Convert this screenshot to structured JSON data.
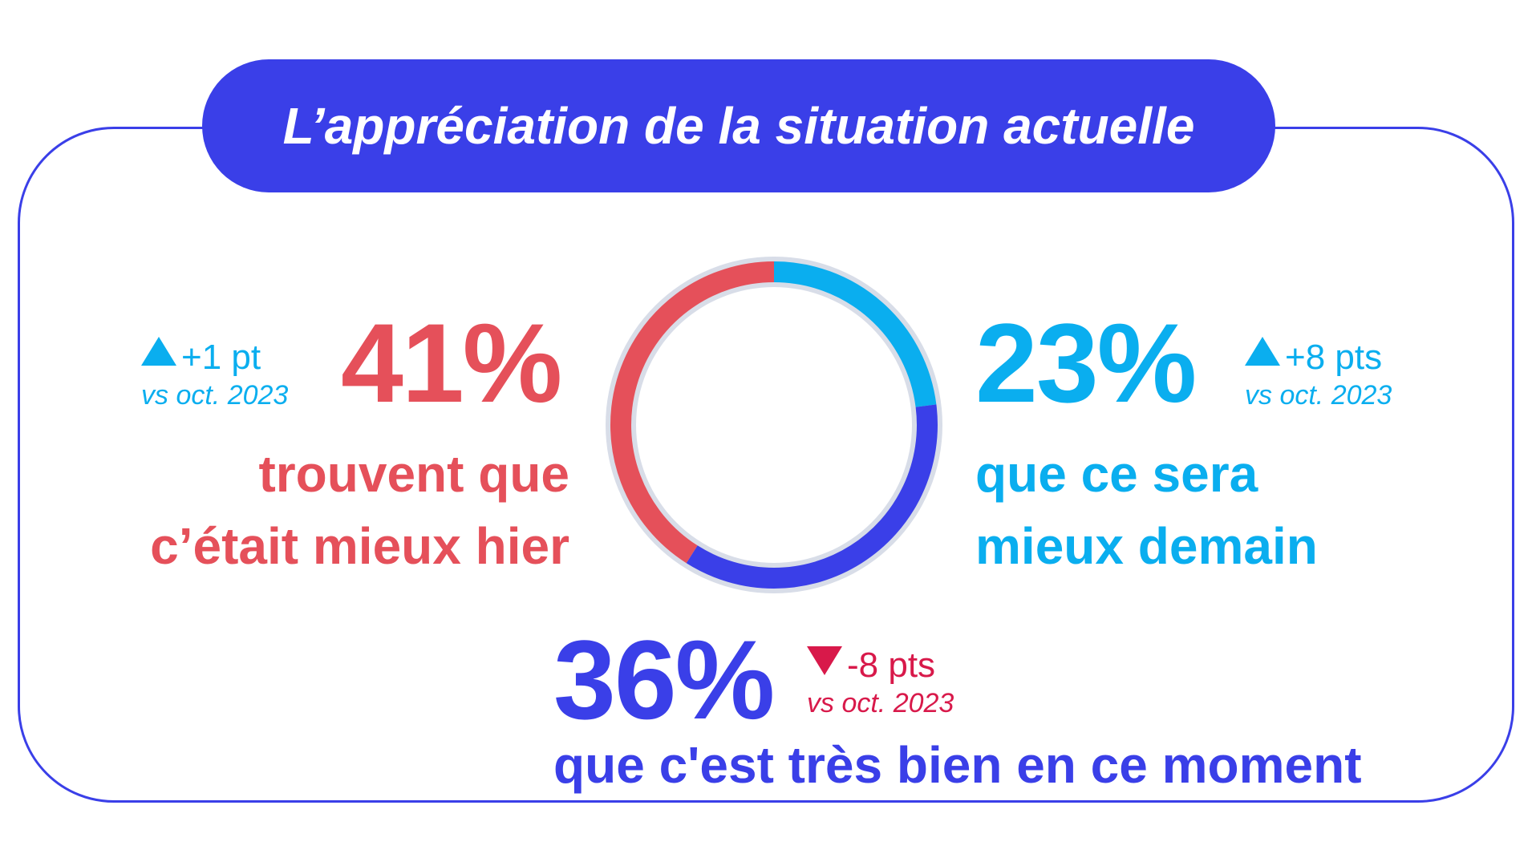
{
  "title": "L’appréciation de la situation actuelle",
  "colors": {
    "accent": "#3a3fe8",
    "red": "#e5505a",
    "cyan": "#0aaeef",
    "ring_bg": "#d8dde8",
    "down": "#d8194a"
  },
  "chart_data": {
    "type": "pie",
    "variant": "donut",
    "title": "L’appréciation de la situation actuelle",
    "start": "top, clockwise",
    "slices": [
      {
        "key": "demain",
        "value": 23,
        "color": "#0aaeef"
      },
      {
        "key": "moment",
        "value": 36,
        "color": "#3a3fe8"
      },
      {
        "key": "hier",
        "value": 41,
        "color": "#e5505a"
      }
    ]
  },
  "stats": {
    "hier": {
      "value": "41%",
      "line1": "trouvent que",
      "line2": "c’était mieux hier",
      "delta": "+1 pt",
      "vs": "vs oct. 2023",
      "trend": "up"
    },
    "demain": {
      "value": "23%",
      "line1": "que ce sera",
      "line2": "mieux demain",
      "delta": "+8 pts",
      "vs": "vs oct. 2023",
      "trend": "up"
    },
    "moment": {
      "value": "36%",
      "line1": "que c'est très bien en ce moment",
      "delta": "-8 pts",
      "vs": "vs oct. 2023",
      "trend": "down"
    }
  }
}
